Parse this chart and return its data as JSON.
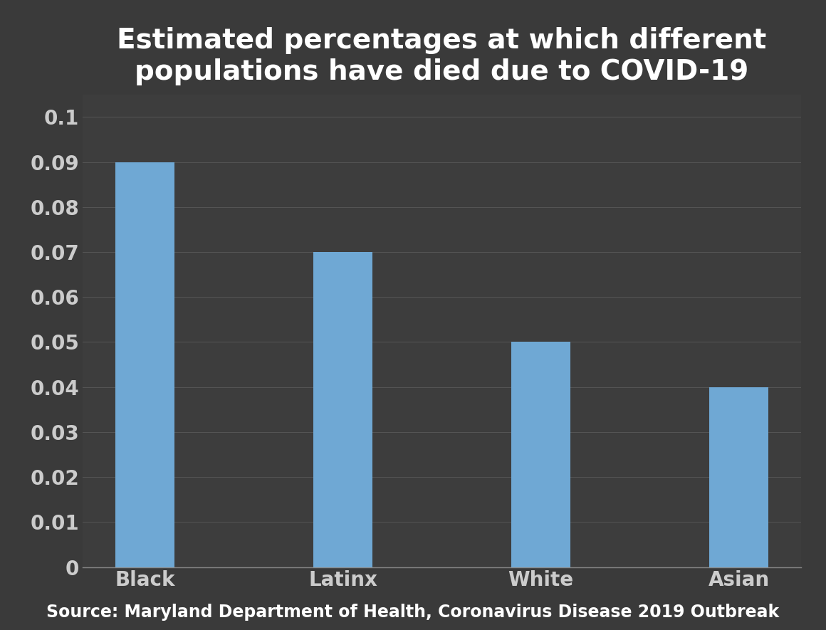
{
  "categories": [
    "Black",
    "Latinx",
    "White",
    "Asian"
  ],
  "values": [
    0.09,
    0.07,
    0.05,
    0.04
  ],
  "bar_color": "#6fa8d4",
  "background_color": "#3a3a3a",
  "plot_bg_color": "#3d3d3d",
  "title_line1": "Estimated percentages at which different",
  "title_line2": "populations have died due to COVID-19",
  "title_fontsize": 28,
  "title_color": "#ffffff",
  "tick_label_color": "#cccccc",
  "tick_label_fontsize": 20,
  "ylim": [
    0,
    0.105
  ],
  "yticks": [
    0,
    0.01,
    0.02,
    0.03,
    0.04,
    0.05,
    0.06,
    0.07,
    0.08,
    0.09,
    0.1
  ],
  "source_text": "Source: Maryland Department of Health, Coronavirus Disease 2019 Outbreak",
  "source_fontsize": 17,
  "source_color": "#ffffff",
  "grid_color": "#555555",
  "bar_width": 0.3
}
